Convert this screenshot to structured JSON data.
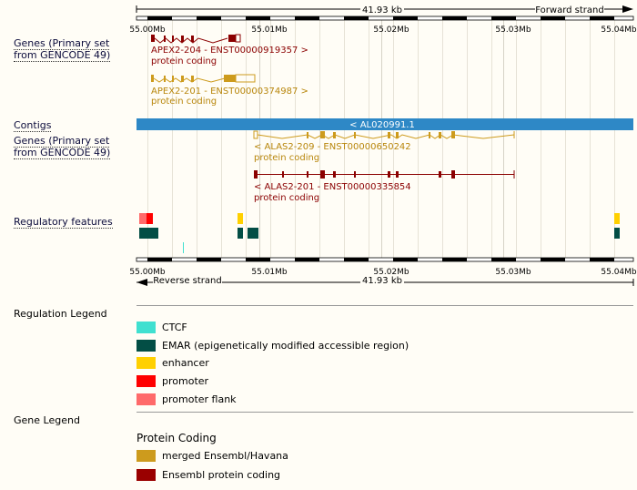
{
  "scale_top": {
    "size_label": "41.93 kb",
    "strand_label": "Forward strand"
  },
  "scale_bottom": {
    "size_label": "41.93 kb",
    "strand_label": "Reverse strand"
  },
  "ticks": [
    "55.00Mb",
    "55.01Mb",
    "55.02Mb",
    "55.03Mb",
    "55.04Mb"
  ],
  "tracks": {
    "genes_forward_label": "Genes (Primary set from GENCODE 49)",
    "contigs_label": "Contigs",
    "genes_reverse_label": "Genes (Primary set from GENCODE 49)",
    "regulatory_label": "Regulatory features"
  },
  "transcripts": {
    "apex2_204": {
      "name": "APEX2-204 - ENST00000919357 >",
      "biotype": "protein coding"
    },
    "apex2_201": {
      "name": "APEX2-201 - ENST00000374987 >",
      "biotype": "protein coding"
    },
    "alas2_209": {
      "name": "< ALAS2-209 - ENST00000650242",
      "biotype": "protein coding"
    },
    "alas2_201": {
      "name": "< ALAS2-201 - ENST00000335854",
      "biotype": "protein coding"
    }
  },
  "contig": {
    "label": "< AL020991.1"
  },
  "regulation_legend": {
    "title": "Regulation Legend",
    "items": [
      {
        "label": "CTCF",
        "color": "#40e0d0"
      },
      {
        "label": "EMAR (epigenetically modified accessible region)",
        "color": "#034e45"
      },
      {
        "label": "enhancer",
        "color": "#ffd000"
      },
      {
        "label": "promoter",
        "color": "#ff0000"
      },
      {
        "label": "promoter flank",
        "color": "#ff6a6a"
      }
    ]
  },
  "gene_legend": {
    "title": "Gene Legend",
    "heading": "Protein Coding",
    "items": [
      {
        "label": "merged Ensembl/Havana",
        "color": "#cd9b1d"
      },
      {
        "label": "Ensembl protein coding",
        "color": "#9a0000"
      }
    ]
  },
  "colors": {
    "gold": "#cd9b1d",
    "gold_text": "#b8860b",
    "darkred": "#8b0000",
    "contig_blue": "#2e88c6"
  }
}
